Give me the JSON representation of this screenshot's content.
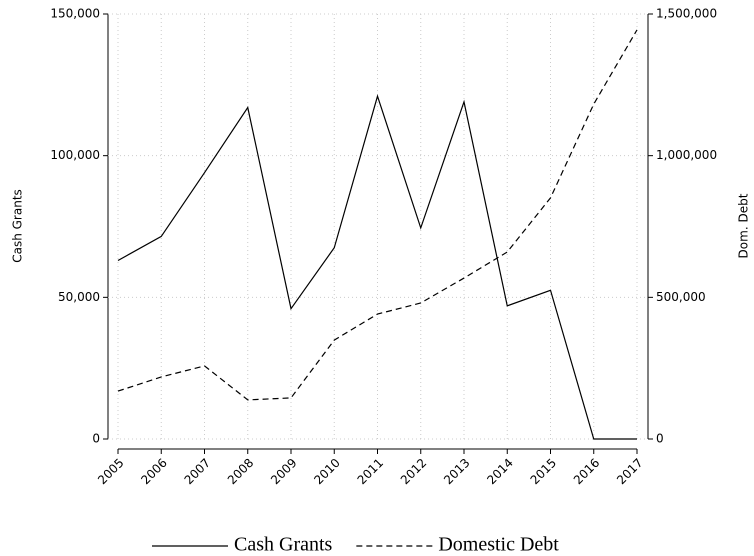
{
  "chart_data": {
    "type": "line",
    "x": [
      2005,
      2006,
      2007,
      2008,
      2009,
      2010,
      2011,
      2012,
      2013,
      2014,
      2015,
      2016,
      2017
    ],
    "xlim": [
      2005,
      2017
    ],
    "xticks": [
      2005,
      2006,
      2007,
      2008,
      2009,
      2010,
      2011,
      2012,
      2013,
      2014,
      2015,
      2016,
      2017
    ],
    "ylabel": "Cash Grants",
    "y2label": "Dom. Debt",
    "ylim": [
      0,
      150000
    ],
    "yticks": [
      {
        "value": 0,
        "label": "0"
      },
      {
        "value": 50000,
        "label": "50,000"
      },
      {
        "value": 100000,
        "label": "100,000"
      },
      {
        "value": 150000,
        "label": "150,000"
      }
    ],
    "y2lim": [
      0,
      1500000
    ],
    "y2ticks": [
      {
        "value": 0,
        "label": "0"
      },
      {
        "value": 500000,
        "label": "500,000"
      },
      {
        "value": 1000000,
        "label": "1,000,000"
      },
      {
        "value": 1500000,
        "label": "1,500,000"
      }
    ],
    "grid": true,
    "series": [
      {
        "name": "Cash Grants",
        "color": "#000000",
        "dash": "solid",
        "values": [
          63000,
          71500,
          94000,
          117000,
          46000,
          67500,
          121000,
          74500,
          119000,
          47000,
          52500,
          0,
          0
        ]
      },
      {
        "name": "Domestic Debt",
        "color": "#000000",
        "dash": "dashed",
        "axis": "y2",
        "values": [
          169000,
          219000,
          258000,
          138000,
          145000,
          349000,
          441000,
          480000,
          568000,
          660000,
          851000,
          1182000,
          1444000
        ]
      }
    ]
  }
}
